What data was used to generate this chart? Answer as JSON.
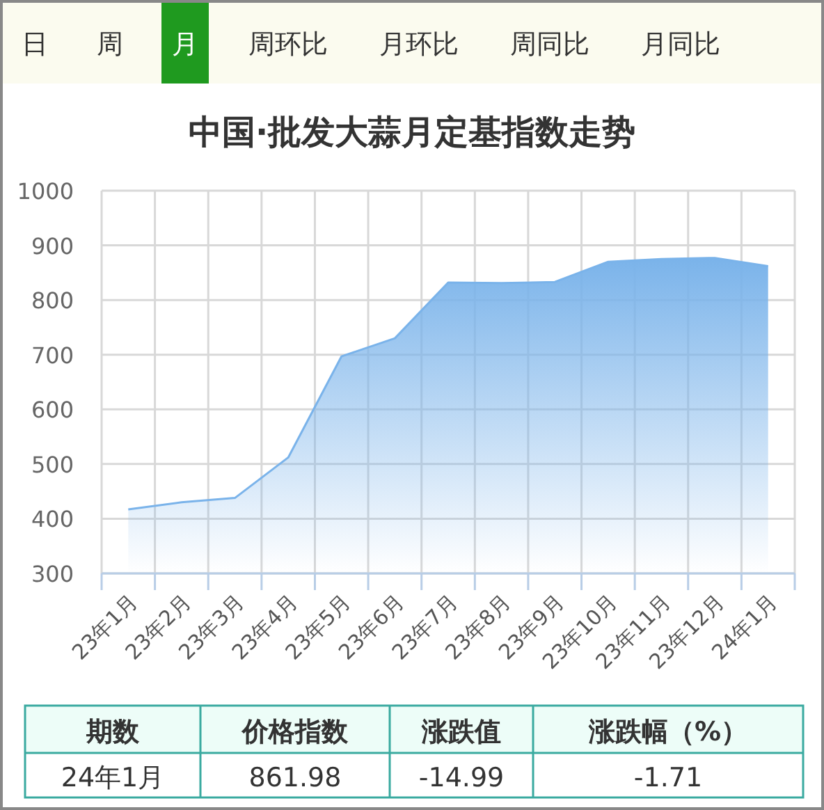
{
  "chart_data": [
    {
      "type": "other",
      "annotations": [
        "日",
        "周",
        "月",
        "周环比",
        "月环比",
        "周同比",
        "月同比"
      ]
    },
    {
      "type": "area",
      "title": "中国·批发大蒜月定基指数走势",
      "categories": [
        "23年1月",
        "23年2月",
        "23年3月",
        "23年4月",
        "23年5月",
        "23年6月",
        "23年7月",
        "23年8月",
        "23年9月",
        "23年10月",
        "23年11月",
        "23年12月",
        "24年1月"
      ],
      "series": [
        {
          "color": "#7ab3ea",
          "values": [
            417,
            430,
            438,
            512,
            697,
            730,
            832,
            831,
            833,
            870,
            875,
            877,
            862
          ]
        }
      ],
      "ylim": [
        300,
        1000
      ],
      "yticks": [
        300,
        400,
        500,
        600,
        700,
        800,
        900,
        1000
      ],
      "grid": true,
      "marker": "none",
      "line_style": "solid"
    },
    {
      "type": "other",
      "annotations": [
        "期数",
        "价格指数",
        "涨跌值",
        "涨跌幅（%）",
        "24年1月",
        "861.98",
        "-14.99",
        "-1.71"
      ]
    }
  ]
}
